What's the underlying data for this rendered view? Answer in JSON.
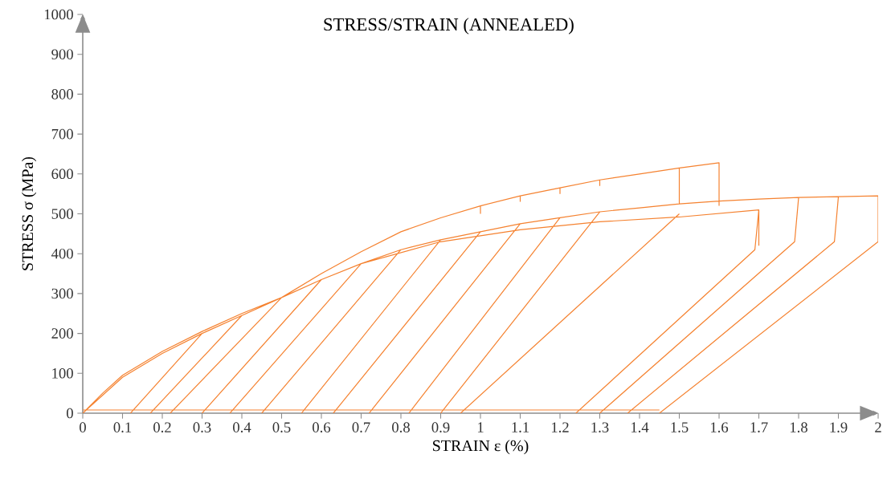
{
  "chart_data": {
    "type": "line",
    "title": "STRESS/STRAIN (ANNEALED)",
    "xlabel": "STRAIN ε (%)",
    "ylabel": "STRESS σ (MPa)",
    "xlim": [
      0,
      2
    ],
    "ylim": [
      0,
      1000
    ],
    "xticks": [
      0,
      0.1,
      0.2,
      0.3,
      0.4,
      0.5,
      0.6,
      0.7,
      0.8,
      0.9,
      1,
      1.1,
      1.2,
      1.3,
      1.4,
      1.5,
      1.6,
      1.7,
      1.8,
      1.9,
      2
    ],
    "yticks": [
      0,
      100,
      200,
      300,
      400,
      500,
      600,
      700,
      800,
      900,
      1000
    ],
    "grid": false,
    "marker": "none",
    "line_style": "solid",
    "series": [
      {
        "color": "#f58230",
        "x": [
          0,
          0.05,
          0.1,
          0.2,
          0.3,
          0.4,
          0.5,
          0.6,
          0.7,
          0.8,
          0.9,
          1.0,
          1.1,
          1.2,
          1.3,
          1.4,
          1.5,
          1.6,
          1.6,
          null,
          0,
          0.1,
          0.2,
          0.3,
          0.4,
          0.5,
          0.6,
          0.7,
          0.8,
          0.9,
          1.0,
          1.1,
          1.2,
          1.3,
          1.4,
          1.5,
          1.6,
          1.7,
          1.8,
          1.9,
          2.0,
          2.0,
          null,
          0.7,
          0.9,
          1.1,
          1.3,
          1.5,
          1.7,
          1.7,
          null,
          0.12,
          0.3,
          null,
          0.17,
          0.4,
          null,
          0.22,
          0.5,
          null,
          0.3,
          0.6,
          null,
          0.37,
          0.7,
          null,
          0.45,
          0.8,
          null,
          0.55,
          0.9,
          null,
          0.63,
          1.0,
          null,
          0.72,
          1.1,
          null,
          0.82,
          1.2,
          null,
          0.9,
          1.3,
          null,
          0.95,
          1.5,
          null,
          1.24,
          1.69,
          1.7,
          null,
          1.3,
          1.79,
          1.8,
          null,
          1.37,
          1.89,
          1.9,
          null,
          1.45,
          2.0,
          2.0,
          null,
          1.0,
          1.0,
          null,
          1.1,
          1.1,
          null,
          1.2,
          1.2,
          null,
          1.3,
          1.3,
          null,
          1.5,
          1.5,
          null,
          0,
          1.45
        ],
        "values": [
          0,
          50,
          95,
          155,
          205,
          250,
          290,
          350,
          405,
          455,
          490,
          520,
          545,
          565,
          585,
          600,
          615,
          628,
          520,
          null,
          0,
          90,
          150,
          200,
          245,
          290,
          335,
          375,
          410,
          435,
          455,
          475,
          490,
          505,
          515,
          525,
          532,
          537,
          541,
          543,
          545,
          520,
          null,
          375,
          430,
          460,
          480,
          492,
          510,
          420,
          null,
          0,
          200,
          null,
          0,
          245,
          null,
          0,
          290,
          null,
          0,
          335,
          null,
          0,
          375,
          null,
          0,
          410,
          null,
          0,
          435,
          null,
          0,
          455,
          null,
          0,
          475,
          null,
          0,
          490,
          null,
          0,
          505,
          null,
          0,
          500,
          null,
          0,
          410,
          510,
          null,
          0,
          430,
          541,
          null,
          0,
          430,
          543,
          null,
          0,
          430,
          520,
          null,
          520,
          500,
          null,
          545,
          530,
          null,
          565,
          550,
          null,
          585,
          570,
          null,
          615,
          525,
          null,
          8,
          8
        ]
      }
    ]
  }
}
